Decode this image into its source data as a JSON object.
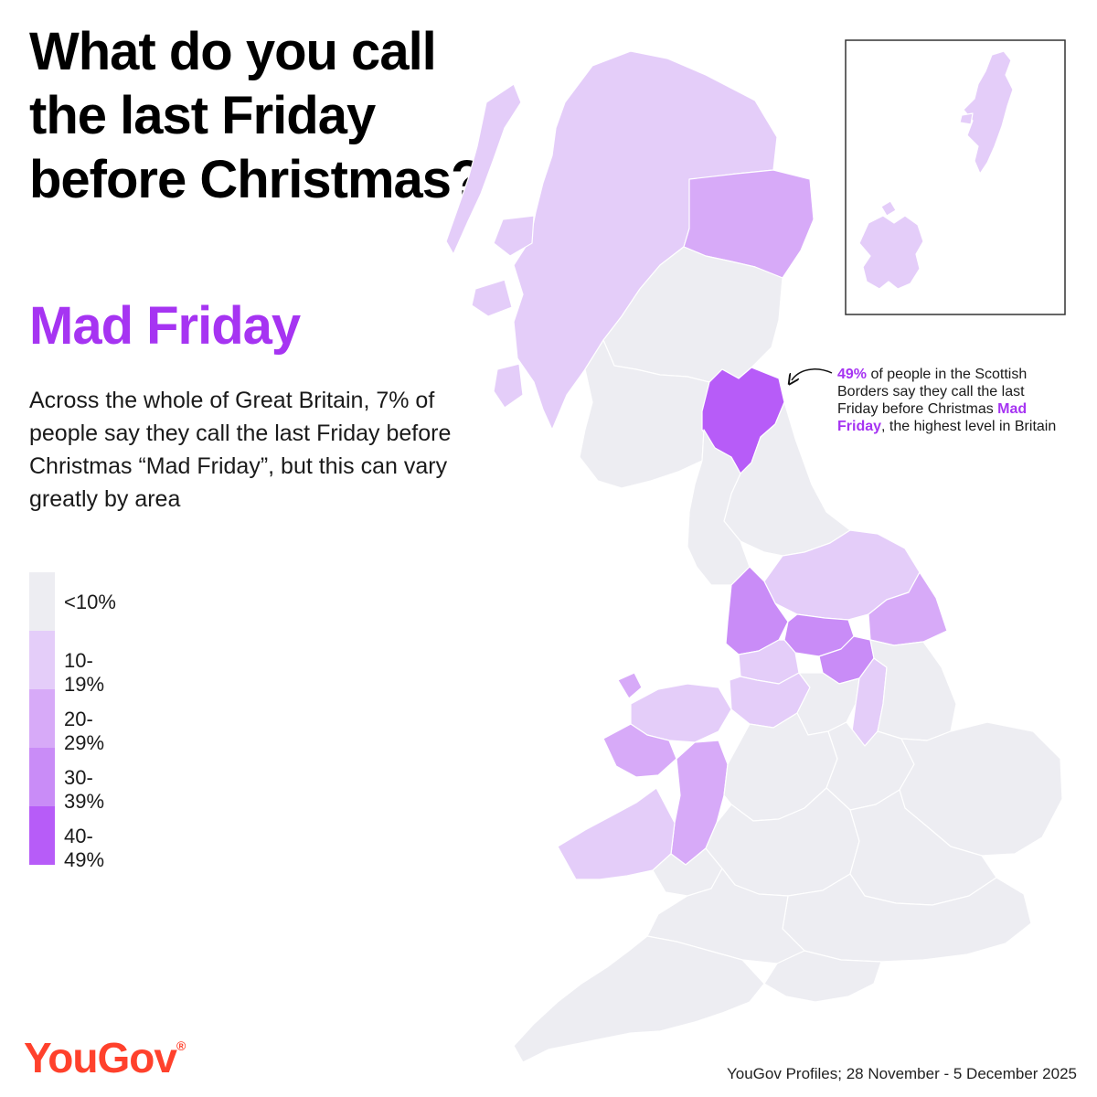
{
  "title": "What do you call the last Friday before Christmas?",
  "subtitle": "Mad Friday",
  "description": "Across the whole of Great Britain, 7% of people say they call the last Friday before Christmas “Mad Friday”, but this can vary greatly by area",
  "legend": [
    {
      "label": "<10%",
      "color": "#ededf2"
    },
    {
      "label": "10-19%",
      "color": "#e4cdf9"
    },
    {
      "label": "20-29%",
      "color": "#d7aaf8"
    },
    {
      "label": "30-39%",
      "color": "#c98cf7"
    },
    {
      "label": "40-49%",
      "color": "#b75cf8"
    }
  ],
  "annotation": {
    "value": "49%",
    "text_before": " of people in the Scottish Borders say they call the last Friday before Christmas ",
    "highlight": "Mad Friday",
    "text_after": ", the highest level in Britain"
  },
  "logo": "YouGov",
  "logo_mark": "®",
  "source": "YouGov Profiles; 28 November - 5 December 2025"
}
